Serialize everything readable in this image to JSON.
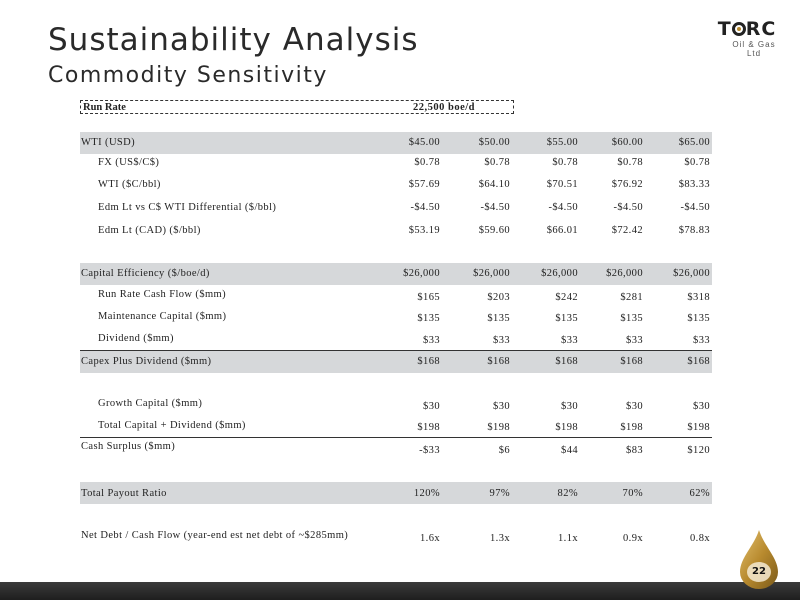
{
  "header": {
    "title": "Sustainability Analysis",
    "subtitle": "Commodity Sensitivity"
  },
  "logo": {
    "name": "TORC",
    "tagline": "Oil & Gas Ltd"
  },
  "run_rate": {
    "label": "Run Rate",
    "value": "22,500 boe/d"
  },
  "rows": [
    {
      "label": "WTI (USD)",
      "values": [
        "$45.00",
        "$50.00",
        "$55.00",
        "$60.00",
        "$65.00"
      ]
    },
    {
      "label": "FX (US$/C$)",
      "values": [
        "$0.78",
        "$0.78",
        "$0.78",
        "$0.78",
        "$0.78"
      ]
    },
    {
      "label": "WTI ($C/bbl)",
      "values": [
        "$57.69",
        "$64.10",
        "$70.51",
        "$76.92",
        "$83.33"
      ]
    },
    {
      "label": "Edm Lt vs C$ WTI Differential ($/bbl)",
      "values": [
        "-$4.50",
        "-$4.50",
        "-$4.50",
        "-$4.50",
        "-$4.50"
      ]
    },
    {
      "label": "Edm Lt (CAD) ($/bbl)",
      "values": [
        "$53.19",
        "$59.60",
        "$66.01",
        "$72.42",
        "$78.83"
      ]
    },
    {
      "label": "Capital Efficiency ($/boe/d)",
      "values": [
        "$26,000",
        "$26,000",
        "$26,000",
        "$26,000",
        "$26,000"
      ]
    },
    {
      "label": "Run Rate Cash Flow ($mm)",
      "values": [
        "$165",
        "$203",
        "$242",
        "$281",
        "$318"
      ]
    },
    {
      "label": "Maintenance Capital ($mm)",
      "values": [
        "$135",
        "$135",
        "$135",
        "$135",
        "$135"
      ]
    },
    {
      "label": "Dividend ($mm)",
      "values": [
        "$33",
        "$33",
        "$33",
        "$33",
        "$33"
      ]
    },
    {
      "label": "Capex Plus Dividend ($mm)",
      "values": [
        "$168",
        "$168",
        "$168",
        "$168",
        "$168"
      ]
    },
    {
      "label": "Growth Capital ($mm)",
      "values": [
        "$30",
        "$30",
        "$30",
        "$30",
        "$30"
      ]
    },
    {
      "label": "Total Capital + Dividend ($mm)",
      "values": [
        "$198",
        "$198",
        "$198",
        "$198",
        "$198"
      ]
    },
    {
      "label": "Cash Surplus ($mm)",
      "values": [
        "-$33",
        "$6",
        "$44",
        "$83",
        "$120"
      ]
    },
    {
      "label": "Total Payout Ratio",
      "values": [
        "120%",
        "97%",
        "82%",
        "70%",
        "62%"
      ]
    },
    {
      "label": "Net Debt / Cash Flow (year-end est net debt of ~$285mm)",
      "values": [
        "1.6x",
        "1.3x",
        "1.1x",
        "0.9x",
        "0.8x"
      ]
    }
  ],
  "footer": {
    "page_number": "22"
  },
  "colors": {
    "row_shade": "#d6d8da",
    "logo_gold": "#b88a2e",
    "footer_bar": "#2a2a2a"
  }
}
